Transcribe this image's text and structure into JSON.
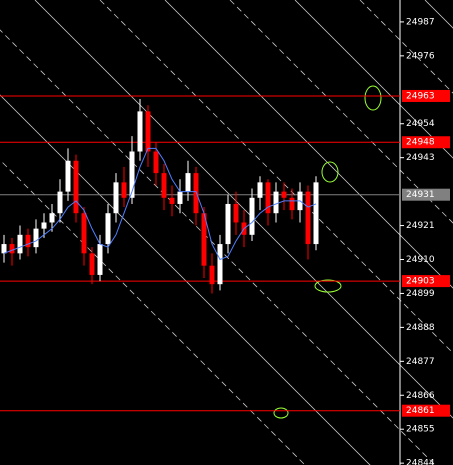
{
  "chart_data": {
    "type": "candlestick",
    "ylim": [
      24843.4,
      24994.1
    ],
    "yticks": [
      24844,
      24855,
      24866,
      24877,
      24888,
      24899,
      24910,
      24921,
      24943,
      24954,
      24976,
      24987
    ],
    "open": [
      24912,
      24915,
      24912,
      24918,
      24914,
      24920,
      24922,
      24925,
      24932,
      24942,
      24925,
      24912,
      24905,
      24915,
      24925,
      24935,
      24930,
      24945,
      24958,
      24945,
      24938,
      24930,
      24928,
      24932,
      24938,
      24925,
      24908,
      24902,
      24915,
      24928,
      24922,
      24918,
      24930,
      24935,
      24925,
      24932,
      24930,
      24926,
      24932,
      24915
    ],
    "high": [
      24918,
      24917,
      24921,
      24920,
      24923,
      24925,
      24928,
      24936,
      24946,
      24944,
      24927,
      24914,
      24918,
      24928,
      24938,
      24940,
      24950,
      24962,
      24960,
      24948,
      24941,
      24934,
      24936,
      24942,
      24940,
      24927,
      24912,
      24918,
      24931,
      24932,
      24926,
      24933,
      24937,
      24936,
      24935,
      24935,
      24933,
      24935,
      24934,
      24937
    ],
    "low": [
      24909,
      24908,
      24910,
      24911,
      24912,
      24917,
      24919,
      24922,
      24929,
      24922,
      24908,
      24902,
      24903,
      24912,
      24922,
      24927,
      24928,
      24942,
      24940,
      24934,
      24926,
      24924,
      24925,
      24929,
      24921,
      24904,
      24899,
      24900,
      24912,
      24918,
      24914,
      24916,
      24926,
      24921,
      24922,
      24926,
      24923,
      24922,
      24910,
      24913
    ],
    "close": [
      24915,
      24912,
      24918,
      24914,
      24920,
      24922,
      24925,
      24932,
      24942,
      24925,
      24912,
      24905,
      24915,
      24925,
      24935,
      24930,
      24945,
      24958,
      24945,
      24938,
      24930,
      24928,
      24932,
      24938,
      24925,
      24908,
      24902,
      24915,
      24928,
      24922,
      24918,
      24930,
      24935,
      24925,
      24932,
      24930,
      24926,
      24932,
      24915,
      24935
    ],
    "up_color": "#ffffff",
    "down_color": "#ff0000",
    "series": [
      {
        "color": "#4f7fff",
        "values": [
          24912,
          24913,
          24914,
          24915,
          24916,
          24918,
          24920,
          24923,
          24927,
          24929,
          24926,
          24920,
          24915,
          24914,
          24918,
          24925,
          24932,
          24940,
          24946,
          24946,
          24942,
          24936,
          24932,
          24932,
          24932,
          24925,
          24915,
          24910,
          24911,
          24916,
          24920,
          24922,
          24925,
          24927,
          24928,
          24929,
          24929,
          24929,
          24927,
          24928
        ]
      }
    ],
    "levels": [
      24963,
      24948,
      24903,
      24861
    ],
    "level_color": "#ff0000",
    "current_price": 24931,
    "current_color": "#808080"
  }
}
